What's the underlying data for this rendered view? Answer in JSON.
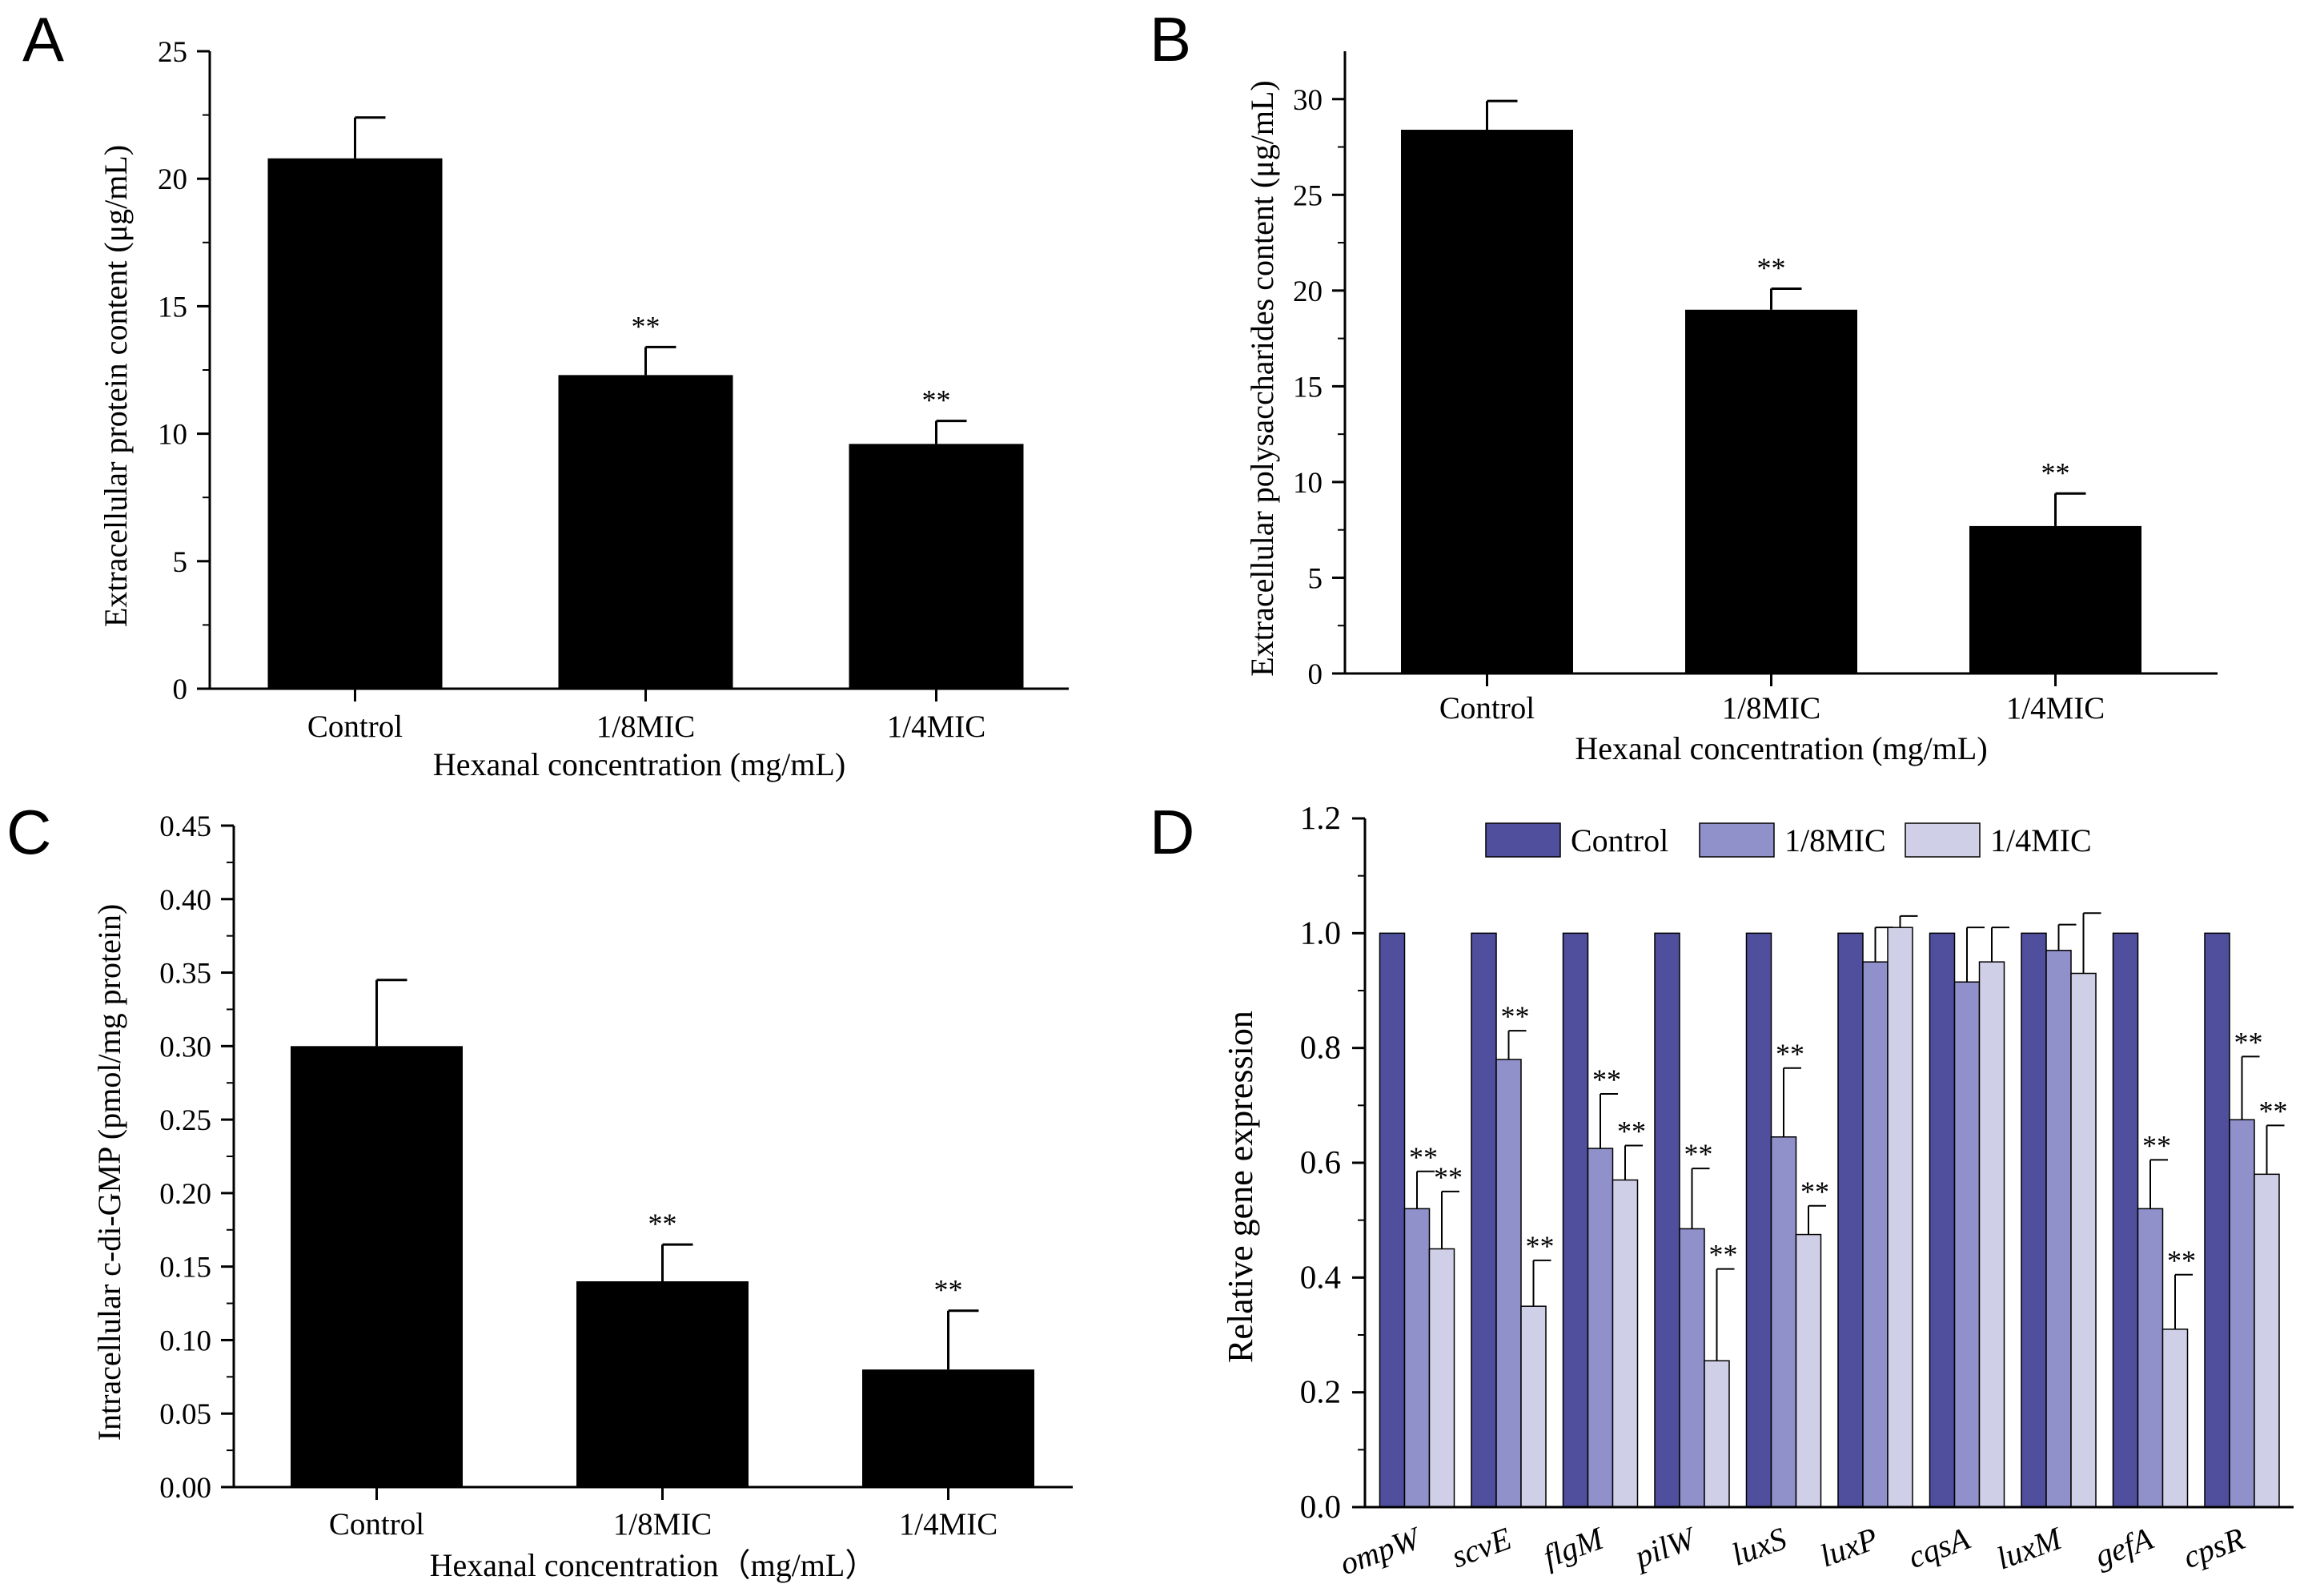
{
  "chart_data": [
    {
      "panel": "A",
      "type": "bar",
      "categories": [
        "Control",
        "1/8MIC",
        "1/4MIC"
      ],
      "values": [
        20.8,
        12.3,
        9.6
      ],
      "errors": [
        1.6,
        1.1,
        0.9
      ],
      "significance": [
        "",
        "**",
        "**"
      ],
      "xlabel": "Hexanal concentration (mg/mL)",
      "ylabel": "Extracellular protein content (μg/mL)",
      "ylim": [
        0,
        25
      ],
      "yticks": [
        0,
        5,
        10,
        15,
        20,
        25
      ],
      "ytick_labels": [
        "0",
        "5",
        "10",
        "15",
        "20",
        "25"
      ],
      "bar_color": "#000000",
      "grid": false
    },
    {
      "panel": "B",
      "type": "bar",
      "categories": [
        "Control",
        "1/8MIC",
        "1/4MIC"
      ],
      "values": [
        28.4,
        19.0,
        7.7
      ],
      "errors": [
        1.5,
        1.1,
        1.7
      ],
      "significance": [
        "",
        "**",
        "**"
      ],
      "xlabel": "Hexanal concentration (mg/mL)",
      "ylabel": "Extracellular polysaccharides content (μg/mL)",
      "ylim": [
        0,
        32.5
      ],
      "yticks": [
        0,
        5,
        10,
        15,
        20,
        25,
        30
      ],
      "ytick_labels": [
        "0",
        "5",
        "10",
        "15",
        "20",
        "25",
        "30"
      ],
      "bar_color": "#000000",
      "grid": false
    },
    {
      "panel": "C",
      "type": "bar",
      "categories": [
        "Control",
        "1/8MIC",
        "1/4MIC"
      ],
      "values": [
        0.3,
        0.14,
        0.08
      ],
      "errors": [
        0.045,
        0.025,
        0.04
      ],
      "significance": [
        "",
        "**",
        "**"
      ],
      "xlabel": "Hexanal concentration（mg/mL）",
      "ylabel": "Intracellular c-di-GMP (pmol/mg protein)",
      "ylim": [
        0,
        0.45
      ],
      "yticks": [
        0,
        0.05,
        0.1,
        0.15,
        0.2,
        0.25,
        0.3,
        0.35,
        0.4,
        0.45
      ],
      "ytick_labels": [
        "0.00",
        "0.05",
        "0.10",
        "0.15",
        "0.20",
        "0.25",
        "0.30",
        "0.35",
        "0.40",
        "0.45"
      ],
      "bar_color": "#000000",
      "grid": false
    },
    {
      "panel": "D",
      "type": "bar",
      "categories": [
        "ompW",
        "scvE",
        "flgM",
        "pilW",
        "luxS",
        "luxP",
        "cqsA",
        "luxM",
        "gefA",
        "cpsR"
      ],
      "series": [
        {
          "name": "Control",
          "color": "#4f4f9d",
          "values": [
            1,
            1,
            1,
            1,
            1,
            1,
            1,
            1,
            1,
            1
          ],
          "errors": [
            0,
            0,
            0,
            0,
            0,
            0,
            0,
            0,
            0,
            0
          ],
          "significance": [
            "",
            "",
            "",
            "",
            "",
            "",
            "",
            "",
            "",
            ""
          ]
        },
        {
          "name": "1/8MIC",
          "color": "#9090ca",
          "values": [
            0.52,
            0.78,
            0.625,
            0.485,
            0.645,
            0.95,
            0.915,
            0.97,
            0.52,
            0.675
          ],
          "errors": [
            0.065,
            0.05,
            0.095,
            0.105,
            0.12,
            0.06,
            0.095,
            0.045,
            0.085,
            0.11
          ],
          "significance": [
            "**",
            "**",
            "**",
            "**",
            "**",
            "",
            "",
            "",
            "**",
            "**"
          ]
        },
        {
          "name": "1/4MIC",
          "color": "#cfcfe7",
          "values": [
            0.45,
            0.35,
            0.57,
            0.255,
            0.475,
            1.01,
            0.95,
            0.93,
            0.31,
            0.58
          ],
          "errors": [
            0.1,
            0.08,
            0.06,
            0.16,
            0.05,
            0.02,
            0.06,
            0.105,
            0.095,
            0.085
          ],
          "significance": [
            "**",
            "**",
            "**",
            "**",
            "**",
            "",
            "",
            "",
            "**",
            "**"
          ]
        }
      ],
      "xlabel": "",
      "ylabel": "Relative gene expression",
      "ylim": [
        0,
        1.2
      ],
      "yticks": [
        0,
        0.2,
        0.4,
        0.6,
        0.8,
        1.0,
        1.2
      ],
      "ytick_labels": [
        "0.0",
        "0.2",
        "0.4",
        "0.6",
        "0.8",
        "1.0",
        "1.2"
      ],
      "legend_position": "top",
      "grid": false
    }
  ]
}
